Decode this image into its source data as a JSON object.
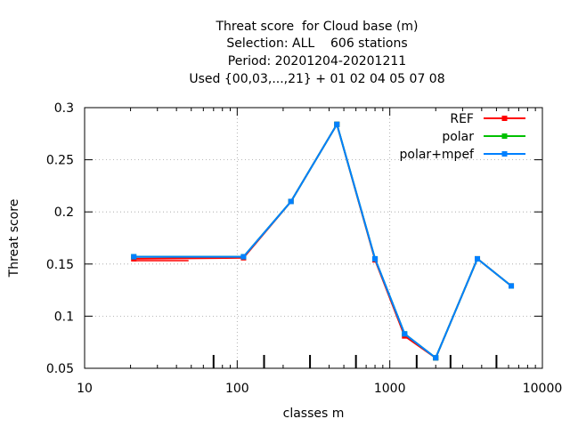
{
  "chart_data": {
    "type": "line",
    "title_lines": [
      "Threat score  for Cloud base (m)",
      "Selection: ALL    606 stations",
      "Period: 20201204-20201211",
      "Used {00,03,...,21} + 01 02 04 05 07 08"
    ],
    "xlabel": "classes m",
    "ylabel": "Threat score",
    "x_scale": "log",
    "xlim": [
      10,
      10000
    ],
    "ylim": [
      0.05,
      0.3
    ],
    "x_ticks": [
      10,
      100,
      1000,
      10000
    ],
    "x_tick_labels": [
      "10",
      "100",
      "1000",
      "10000"
    ],
    "y_ticks": [
      0.05,
      0.1,
      0.15,
      0.2,
      0.25,
      0.3
    ],
    "y_tick_labels": [
      "0.05",
      "0.1",
      "0.15",
      "0.2",
      "0.25",
      "0.3"
    ],
    "grid": true,
    "legend_position": "top-right",
    "class_boundary_marks": [
      70,
      150,
      300,
      600,
      1500,
      2500,
      5000
    ],
    "x": [
      21,
      110,
      225,
      450,
      800,
      1250,
      2000,
      3750,
      6250
    ],
    "series": [
      {
        "name": "REF",
        "color": "#ff0000",
        "x": [
          21,
          110,
          225,
          450,
          800,
          1250,
          2000,
          3750,
          6250
        ],
        "values": [
          0.155,
          0.156,
          0.21,
          0.284,
          0.154,
          0.081,
          0.06,
          0.155,
          0.129
        ],
        "segment_end_x": 48
      },
      {
        "name": "polar",
        "color": "#00c000",
        "x": [
          21,
          110,
          225,
          450,
          800,
          1250,
          2000,
          3750,
          6250
        ],
        "values": [
          0.157,
          0.157,
          0.21,
          0.284,
          0.155,
          0.083,
          0.06,
          0.155,
          0.129
        ]
      },
      {
        "name": "polar+mpef",
        "color": "#0080ff",
        "x": [
          21,
          110,
          225,
          450,
          800,
          1250,
          2000,
          3750,
          6250
        ],
        "values": [
          0.157,
          0.157,
          0.21,
          0.284,
          0.155,
          0.083,
          0.06,
          0.155,
          0.129
        ]
      }
    ]
  }
}
